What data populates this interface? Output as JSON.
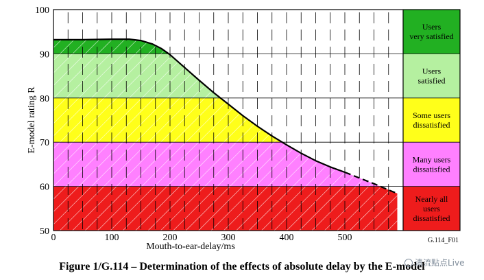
{
  "caption": "Figure 1/G.114 – Determination of the effects of absolute delay by the E-model",
  "watermark": "清流點点Live",
  "chart_data": {
    "type": "line",
    "figure_id": "G.114_F01",
    "xlabel": "Mouth-to-ear-delay/ms",
    "ylabel": "E-model rating R",
    "xlim": [
      0,
      600
    ],
    "ylim": [
      50,
      100
    ],
    "x_ticks": [
      0,
      100,
      200,
      300,
      400,
      500
    ],
    "y_ticks": [
      50,
      60,
      70,
      80,
      90,
      100
    ],
    "grid": true,
    "bands": [
      {
        "from": 90,
        "to": 100,
        "label": [
          "Users",
          "very satisfied"
        ],
        "color": "#22b022"
      },
      {
        "from": 80,
        "to": 90,
        "label": [
          "Users",
          "satisfied"
        ],
        "color": "#b5f0a0"
      },
      {
        "from": 70,
        "to": 80,
        "label": [
          "Some users",
          "dissatisfied"
        ],
        "color": "#ffff1a"
      },
      {
        "from": 60,
        "to": 70,
        "label": [
          "Many users",
          "dissatisfied"
        ],
        "color": "#ff80ff"
      },
      {
        "from": 50,
        "to": 60,
        "label": [
          "Nearly all",
          "users",
          "dissatisfied"
        ],
        "color": "#ee1c1c"
      }
    ],
    "series": [
      {
        "style": "solid",
        "x": [
          0,
          50,
          100,
          130,
          150,
          170,
          185,
          200,
          225,
          250,
          275,
          300,
          325,
          350,
          375,
          400,
          425,
          450,
          475,
          500
        ],
        "y": [
          93.2,
          93.2,
          93.3,
          93.3,
          93.0,
          92.2,
          91.2,
          89.8,
          86.9,
          84.0,
          81.2,
          78.6,
          76.0,
          73.6,
          71.4,
          69.4,
          67.5,
          65.8,
          64.4,
          63.2
        ]
      },
      {
        "style": "dashed",
        "x": [
          500,
          525,
          550,
          575,
          590
        ],
        "y": [
          63.2,
          61.9,
          60.6,
          59.2,
          58.4
        ]
      }
    ]
  }
}
